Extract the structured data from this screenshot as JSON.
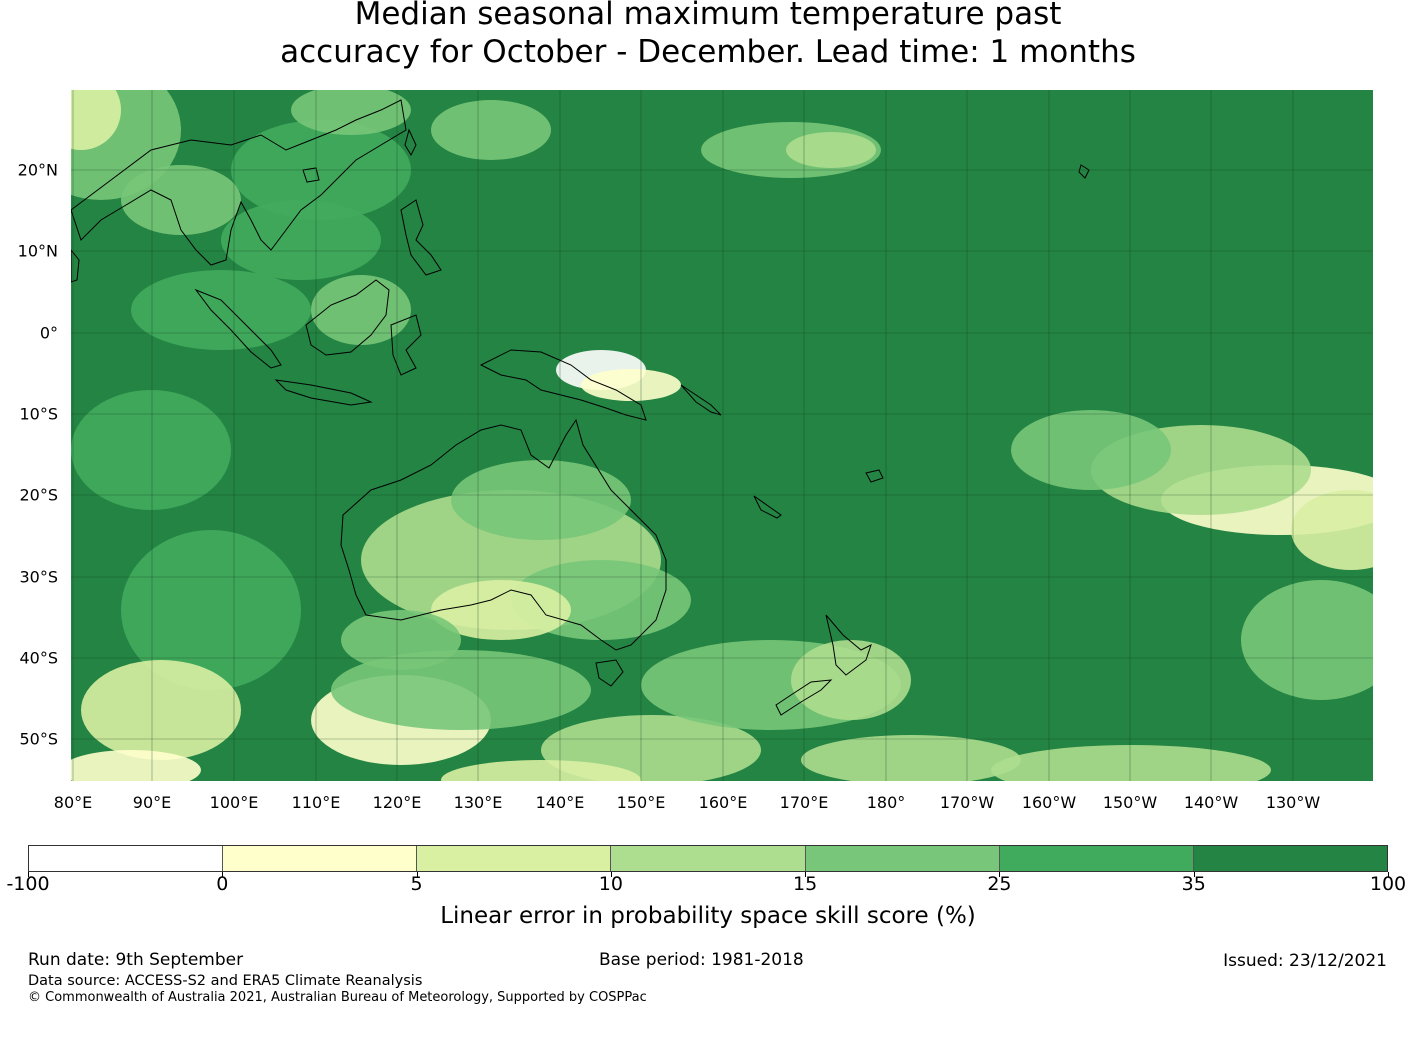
{
  "title": {
    "line1": "Median seasonal maximum temperature past",
    "line2": "accuracy for October - December. Lead time: 1 months"
  },
  "map": {
    "type": "heatmap",
    "extent_lon": [
      "80°E",
      "130°W"
    ],
    "extent_lat": [
      "55°S",
      "30°N"
    ],
    "lon_labels": [
      "80°E",
      "90°E",
      "100°E",
      "110°E",
      "120°E",
      "130°E",
      "140°E",
      "150°E",
      "160°E",
      "170°E",
      "180°",
      "170°W",
      "160°W",
      "150°W",
      "140°W",
      "130°W"
    ],
    "lat_labels": [
      "20°N",
      "10°N",
      "0°",
      "10°S",
      "20°S",
      "30°S",
      "40°S",
      "50°S"
    ],
    "gridlines": true,
    "coastlines": true,
    "dominant_class": "35 to 100"
  },
  "colorbar": {
    "ticks": [
      "-100",
      "0",
      "5",
      "10",
      "15",
      "25",
      "35",
      "100"
    ],
    "colors": [
      "#ffffff",
      "#ffffcc",
      "#d9f0a3",
      "#addd8e",
      "#78c679",
      "#41ab5d",
      "#238443"
    ],
    "label": "Linear error in probability space skill score (%)"
  },
  "footer": {
    "run_date": "Run date: 9th September",
    "base_period": "Base period: 1981-2018",
    "issued": "Issued: 23/12/2021",
    "data_source": "Data source: ACCESS-S2 and ERA5 Climate Reanalysis",
    "copyright": "© Commonwealth of Australia 2021, Australian Bureau of Meteorology, Supported by COSPPac"
  }
}
